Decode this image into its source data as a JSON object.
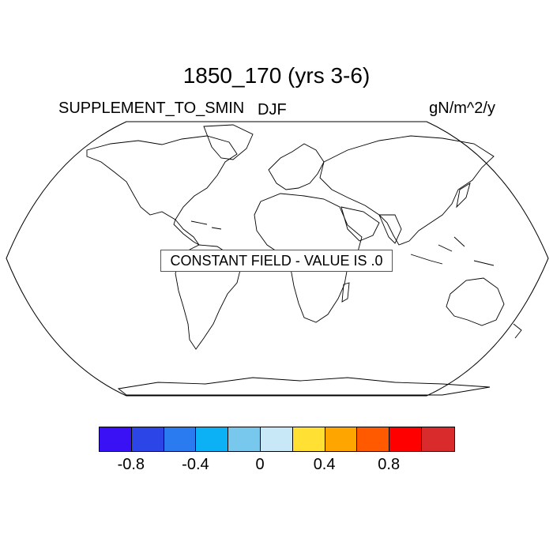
{
  "header": {
    "title": "1850_170 (yrs 3-6)",
    "left_label": "SUPPLEMENT_TO_SMIN",
    "center_label": "DJF",
    "right_label": "gN/m^2/y"
  },
  "map": {
    "projection": "robinson",
    "message": "CONSTANT FIELD - VALUE IS .0"
  },
  "colorbar": {
    "colors": [
      "#3a10f5",
      "#2b45e6",
      "#2a7bf0",
      "#0bb0f5",
      "#78c8ee",
      "#c8e8f8",
      "#ffe033",
      "#ffa500",
      "#ff5a00",
      "#ff0000",
      "#d92b2b"
    ],
    "ticks": [
      {
        "value": -0.8,
        "label": "-0.8"
      },
      {
        "value": -0.4,
        "label": "-0.4"
      },
      {
        "value": 0,
        "label": "0"
      },
      {
        "value": 0.4,
        "label": "0.4"
      },
      {
        "value": 0.8,
        "label": "0.8"
      }
    ]
  }
}
